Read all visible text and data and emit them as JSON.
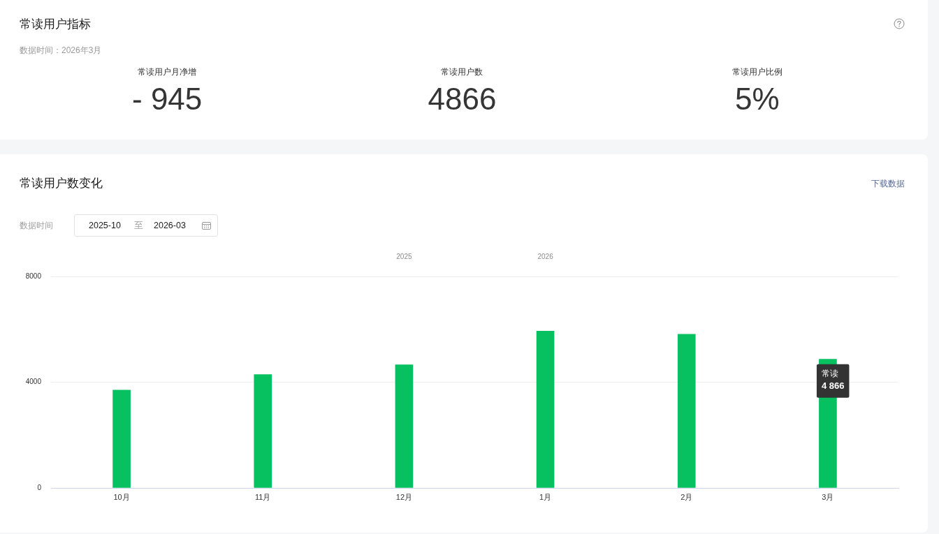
{
  "chart_data": [
    {
      "type": "other",
      "title": "常读用户指标",
      "subtitle": "数据时间：2026年3月",
      "categories": [
        "常读用户月净增",
        "常读用户数",
        "常读用户比例"
      ],
      "value_labels": [
        "- 945",
        "4866",
        "5%"
      ]
    },
    {
      "type": "bar",
      "title": "常读用户数变化",
      "categories": [
        "10月",
        "11月",
        "12月",
        "1月",
        "2月",
        "3月"
      ],
      "series": [
        {
          "name": "常读",
          "color": "#07c160",
          "values": [
            3700,
            4290,
            4660,
            5930,
            5810,
            4866
          ],
          "value_labels": [
            null,
            null,
            null,
            null,
            null,
            "4 866"
          ]
        }
      ],
      "ylim": [
        0,
        8000
      ],
      "yticks": [
        0,
        4000,
        8000
      ],
      "grid": "y",
      "annotations": [
        "下载数据",
        "数据时间",
        "2025-10",
        "至",
        "2026-03",
        "2025",
        "2026"
      ]
    }
  ]
}
